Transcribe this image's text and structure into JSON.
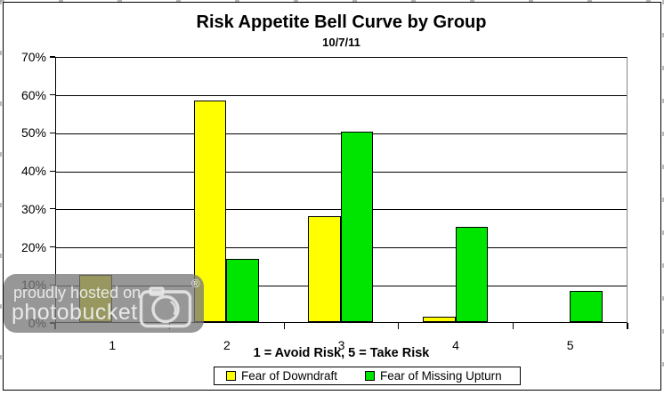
{
  "page": {
    "background": "#FFFFFF"
  },
  "chart_data": {
    "type": "bar",
    "title": "Risk Appetite Bell Curve by Group",
    "subtitle": "10/7/11",
    "categories": [
      "1",
      "2",
      "3",
      "4",
      "5"
    ],
    "series": [
      {
        "name": "Fear of Downdraft",
        "color": "#FFFF00",
        "values": [
          12.5,
          58.3,
          27.8,
          1.4,
          0
        ]
      },
      {
        "name": "Fear of Missing Upturn",
        "color": "#00E500",
        "values": [
          0,
          16.7,
          50.0,
          25.0,
          8.3
        ]
      }
    ],
    "xlabel": "1 = Avoid Risk, 5 = Take Risk",
    "ylabel": "",
    "ylim": [
      0,
      70
    ],
    "ytick_step": 10,
    "ytick_labels": [
      "0%",
      "10%",
      "20%",
      "30%",
      "40%",
      "50%",
      "60%",
      "70%"
    ],
    "grid": true,
    "legend_position": "bottom",
    "axis_color": "#000000",
    "plot_right_border_color": "#858585"
  },
  "watermark": {
    "line1": "proudly hosted on",
    "line2": "photobucket",
    "registered_mark": "®",
    "band_color": "rgba(122,122,122,0.78)"
  }
}
